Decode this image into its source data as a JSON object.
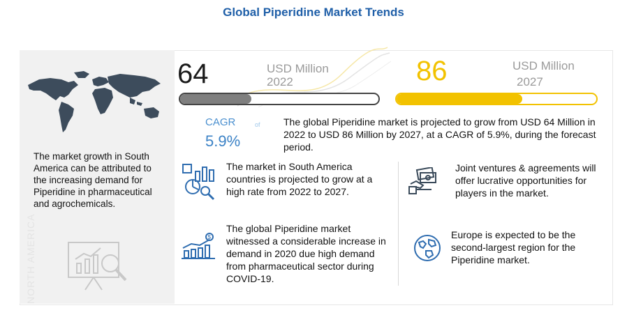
{
  "title": "Global Piperidine Market Trends",
  "sidebar": {
    "text": "The market growth in South America can be attributed to the increasing demand for Piperidine in pharmaceutical and agrochemicals.",
    "watermark": "NORTH AMERICA"
  },
  "value_2022": {
    "number": "64",
    "unit": "USD Million",
    "year": "2022",
    "fill_fraction": 0.36
  },
  "value_2027": {
    "number": "86",
    "unit": "USD Million",
    "year": "2027",
    "fill_fraction": 0.63
  },
  "cagr": {
    "label": "CAGR",
    "of": "of",
    "value": "5.9%"
  },
  "summary": "The global Piperidine market is projected to grow from USD 64 Million in 2022 to USD 86 Million by 2027, at a CAGR of 5.9%, during the forecast period.",
  "highlights": [
    {
      "icon": "analytics-chart-icon",
      "text": "The market in South America countries is projected to grow at a high  rate from 2022 to 2027."
    },
    {
      "icon": "growth-bar-dollar-icon",
      "text": "The global Piperidine market witnessed a considerable increase in demand in 2020 due high demand from pharmaceutical sector during COVID-19."
    },
    {
      "icon": "handshake-money-icon",
      "text": "Joint ventures & agreements will offer lucrative opportunities for players in the market."
    },
    {
      "icon": "globe-icon",
      "text": "Europe is expected to be the second-largest region for the Piperidine market."
    }
  ],
  "colors": {
    "title": "#1f5fa8",
    "accent_yellow": "#f2c200",
    "cagr_blue": "#3b82c6",
    "bar_gray": "#7f7f7f"
  }
}
